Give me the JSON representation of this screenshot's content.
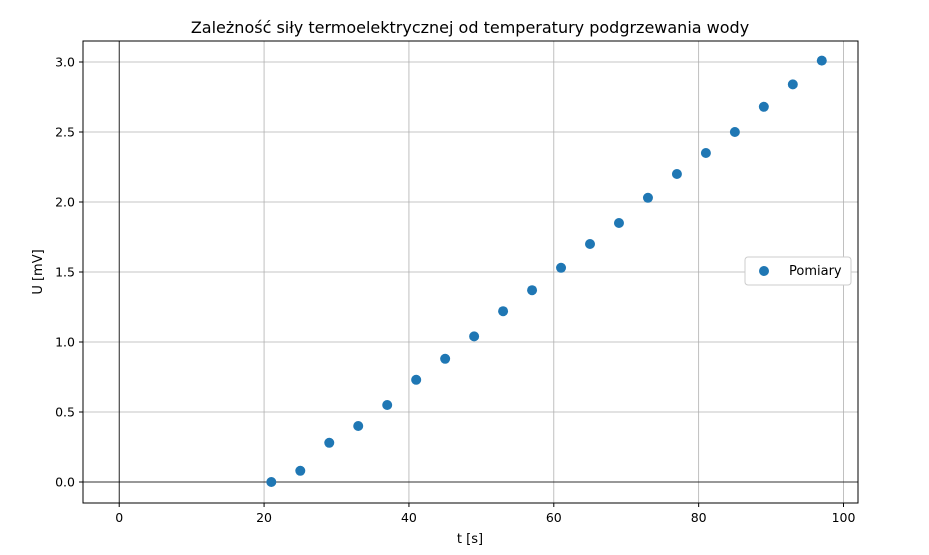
{
  "chart_data": {
    "type": "scatter",
    "title": "Zależność siły termoelektrycznej od temperatury podgrzewania wody",
    "xlabel": "t [s]",
    "ylabel": "U [mV]",
    "xlim": [
      -5,
      102
    ],
    "ylim": [
      -0.15,
      3.15
    ],
    "xticks": [
      0,
      20,
      40,
      60,
      80,
      100
    ],
    "yticks": [
      0.0,
      0.5,
      1.0,
      1.5,
      2.0,
      2.5,
      3.0
    ],
    "xtick_labels": [
      "0",
      "20",
      "40",
      "60",
      "80",
      "100"
    ],
    "ytick_labels": [
      "0.0",
      "0.5",
      "1.0",
      "1.5",
      "2.0",
      "2.5",
      "3.0"
    ],
    "grid": true,
    "zero_lines": true,
    "legend_position": "center-right",
    "series": [
      {
        "name": "Pomiary",
        "color": "#1f77b4",
        "marker": "circle",
        "x": [
          21,
          25,
          29,
          33,
          37,
          41,
          45,
          49,
          53,
          57,
          61,
          65,
          69,
          73,
          77,
          81,
          85,
          89,
          93,
          97
        ],
        "y": [
          0.0,
          0.08,
          0.28,
          0.4,
          0.55,
          0.73,
          0.88,
          1.04,
          1.22,
          1.37,
          1.53,
          1.7,
          1.85,
          2.03,
          2.2,
          2.35,
          2.5,
          2.68,
          2.84,
          3.01
        ]
      }
    ]
  }
}
